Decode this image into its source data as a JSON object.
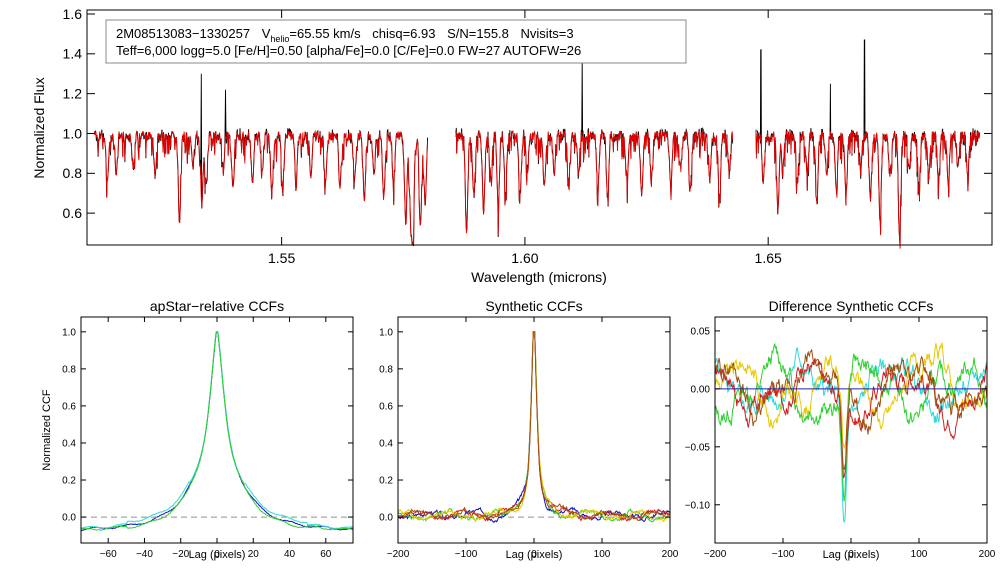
{
  "colors": {
    "axis": "#000000",
    "observed": "#000000",
    "model": "#e00000",
    "blue": "#1010c0",
    "green": "#30d030",
    "cyan": "#30d8d8",
    "yellow": "#e8c800",
    "red": "#d02020",
    "brown": "#a05010",
    "zero_line": "#2020b0",
    "dashed": "#909090"
  },
  "chart_data": [
    {
      "type": "line",
      "id": "spectrum",
      "title": "",
      "xlabel": "Wavelength (microns)",
      "ylabel": "Normalized Flux",
      "xlim": [
        1.51,
        1.696
      ],
      "ylim": [
        0.44,
        1.62
      ],
      "xticks": [
        1.55,
        1.6,
        1.65
      ],
      "xtick_labels": [
        "1.55",
        "1.60",
        "1.65"
      ],
      "yticks": [
        0.6,
        0.8,
        1.0,
        1.2,
        1.4,
        1.6
      ],
      "ytick_labels": [
        "0.6",
        "0.8",
        "1.0",
        "1.2",
        "1.4",
        "1.6"
      ],
      "annotation": {
        "object": "2M08513083−1330257",
        "vhelio_prefix": "V",
        "vhelio_sub": "helio",
        "vhelio_value": "=65.55 km/s",
        "chisq": "chisq=6.93",
        "sn": "S/N=155.8",
        "nvisits": "Nvisits=3",
        "params": "Teff=6,000 logg=5.0 [Fe/H]=0.50 [alpha/Fe]=0.0 [C/Fe]=0.0 FW=27 AUTOFW=26"
      },
      "chips": [
        [
          1.5115,
          1.58
        ],
        [
          1.5858,
          1.6427
        ],
        [
          1.6475,
          1.6935
        ]
      ],
      "absorption_lines": [
        [
          1.5142,
          0.76
        ],
        [
          1.516,
          0.82
        ],
        [
          1.5195,
          0.84
        ],
        [
          1.524,
          0.8
        ],
        [
          1.529,
          0.57
        ],
        [
          1.5318,
          0.84
        ],
        [
          1.5336,
          0.66
        ],
        [
          1.5345,
          0.76
        ],
        [
          1.538,
          0.82
        ],
        [
          1.54,
          0.72
        ],
        [
          1.544,
          0.76
        ],
        [
          1.546,
          0.84
        ],
        [
          1.548,
          0.7
        ],
        [
          1.5502,
          0.74
        ],
        [
          1.553,
          0.82
        ],
        [
          1.556,
          0.8
        ],
        [
          1.559,
          0.77
        ],
        [
          1.562,
          0.72
        ],
        [
          1.565,
          0.78
        ],
        [
          1.567,
          0.66
        ],
        [
          1.569,
          0.82
        ],
        [
          1.571,
          0.68
        ],
        [
          1.573,
          0.76
        ],
        [
          1.5755,
          0.55
        ],
        [
          1.5765,
          0.62
        ],
        [
          1.577,
          0.52
        ],
        [
          1.5785,
          0.52
        ],
        [
          1.5795,
          0.66
        ],
        [
          1.588,
          0.53
        ],
        [
          1.5895,
          0.7
        ],
        [
          1.5915,
          0.62
        ],
        [
          1.593,
          0.8
        ],
        [
          1.5945,
          0.64
        ],
        [
          1.596,
          0.72
        ],
        [
          1.599,
          0.7
        ],
        [
          1.6005,
          0.82
        ],
        [
          1.604,
          0.74
        ],
        [
          1.606,
          0.8
        ],
        [
          1.609,
          0.76
        ],
        [
          1.611,
          0.82
        ],
        [
          1.615,
          0.72
        ],
        [
          1.617,
          0.68
        ],
        [
          1.621,
          0.78
        ],
        [
          1.624,
          0.7
        ],
        [
          1.626,
          0.8
        ],
        [
          1.63,
          0.74
        ],
        [
          1.632,
          0.84
        ],
        [
          1.634,
          0.72
        ],
        [
          1.638,
          0.78
        ],
        [
          1.64,
          0.7
        ],
        [
          1.642,
          0.82
        ],
        [
          1.649,
          0.78
        ],
        [
          1.652,
          0.62
        ],
        [
          1.653,
          0.84
        ],
        [
          1.656,
          0.76
        ],
        [
          1.658,
          0.82
        ],
        [
          1.66,
          0.66
        ],
        [
          1.662,
          0.8
        ],
        [
          1.664,
          0.74
        ],
        [
          1.666,
          0.72
        ],
        [
          1.669,
          0.84
        ],
        [
          1.671,
          0.7
        ],
        [
          1.673,
          0.58
        ],
        [
          1.675,
          0.8
        ],
        [
          1.677,
          0.48
        ],
        [
          1.679,
          0.82
        ],
        [
          1.681,
          0.74
        ],
        [
          1.683,
          0.78
        ],
        [
          1.685,
          0.78
        ],
        [
          1.687,
          0.76
        ],
        [
          1.689,
          0.84
        ],
        [
          1.691,
          0.82
        ]
      ],
      "emission_spikes": [
        [
          1.5335,
          1.3
        ],
        [
          1.5385,
          1.22
        ],
        [
          1.6118,
          1.38
        ],
        [
          1.6485,
          1.42
        ],
        [
          1.6698,
          1.47
        ],
        [
          1.6628,
          1.25
        ]
      ]
    },
    {
      "type": "line",
      "id": "apstar_ccf",
      "title": "apStar−relative CCFs",
      "xlabel": "Lag (pixels)",
      "ylabel": "Normalized CCF",
      "xlim": [
        -75,
        75
      ],
      "ylim": [
        -0.14,
        1.08
      ],
      "xticks": [
        -60,
        -40,
        -20,
        0,
        20,
        40,
        60
      ],
      "xtick_labels": [
        "−60",
        "−40",
        "−20",
        "0",
        "20",
        "40",
        "60"
      ],
      "yticks": [
        0.0,
        0.2,
        0.4,
        0.6,
        0.8,
        1.0
      ],
      "ytick_labels": [
        "0.0",
        "0.2",
        "0.4",
        "0.6",
        "0.8",
        "1.0"
      ],
      "series": [
        {
          "name": "visit1",
          "color": "#1010c0",
          "offset": 0.0
        },
        {
          "name": "visit2",
          "color": "#30d8d8",
          "offset": 0.02
        },
        {
          "name": "visit3",
          "color": "#30d030",
          "offset": -0.01
        }
      ]
    },
    {
      "type": "line",
      "id": "synthetic_ccf",
      "title": "Synthetic CCFs",
      "xlabel": "Lag (pixels)",
      "ylabel": "",
      "xlim": [
        -200,
        200
      ],
      "ylim": [
        -0.14,
        1.08
      ],
      "xticks": [
        -200,
        -100,
        0,
        100,
        200
      ],
      "xtick_labels": [
        "−200",
        "−100",
        "0",
        "100",
        "200"
      ],
      "yticks": [
        0.0,
        0.2,
        0.4,
        0.6,
        0.8,
        1.0
      ],
      "ytick_labels": [
        "0.0",
        "0.2",
        "0.4",
        "0.6",
        "0.8",
        "1.0"
      ],
      "series": [
        {
          "name": "blue",
          "color": "#1010c0",
          "seed": 3
        },
        {
          "name": "green",
          "color": "#30d030",
          "seed": 7
        },
        {
          "name": "red",
          "color": "#d02020",
          "seed": 11
        },
        {
          "name": "yellow",
          "color": "#e8c800",
          "seed": 19
        },
        {
          "name": "brown",
          "color": "#a05010",
          "seed": 23
        }
      ]
    },
    {
      "type": "line",
      "id": "difference_ccf",
      "title": "Difference Synthetic CCFs",
      "xlabel": "Lag (pixels)",
      "ylabel": "",
      "xlim": [
        -200,
        200
      ],
      "ylim": [
        -0.133,
        0.062
      ],
      "xticks": [
        -200,
        -100,
        0,
        100,
        200
      ],
      "xtick_labels": [
        "−200",
        "−100",
        "0",
        "100",
        "200"
      ],
      "yticks": [
        -0.1,
        -0.05,
        0.0,
        0.05
      ],
      "ytick_labels": [
        "−0.10",
        "−0.05",
        "0.00",
        "0.05"
      ],
      "series": [
        {
          "name": "cyan",
          "color": "#30d8d8",
          "seed": 5,
          "dip": -0.123
        },
        {
          "name": "yellow",
          "color": "#e8c800",
          "seed": 9,
          "dip": -0.06
        },
        {
          "name": "green",
          "color": "#30d030",
          "seed": 13,
          "dip": -0.09
        },
        {
          "name": "red",
          "color": "#d02020",
          "seed": 17,
          "dip": -0.072
        },
        {
          "name": "brown",
          "color": "#a05010",
          "seed": 29,
          "dip": -0.08
        },
        {
          "name": "zero",
          "color": "#2020b0",
          "flat": true
        }
      ]
    }
  ]
}
